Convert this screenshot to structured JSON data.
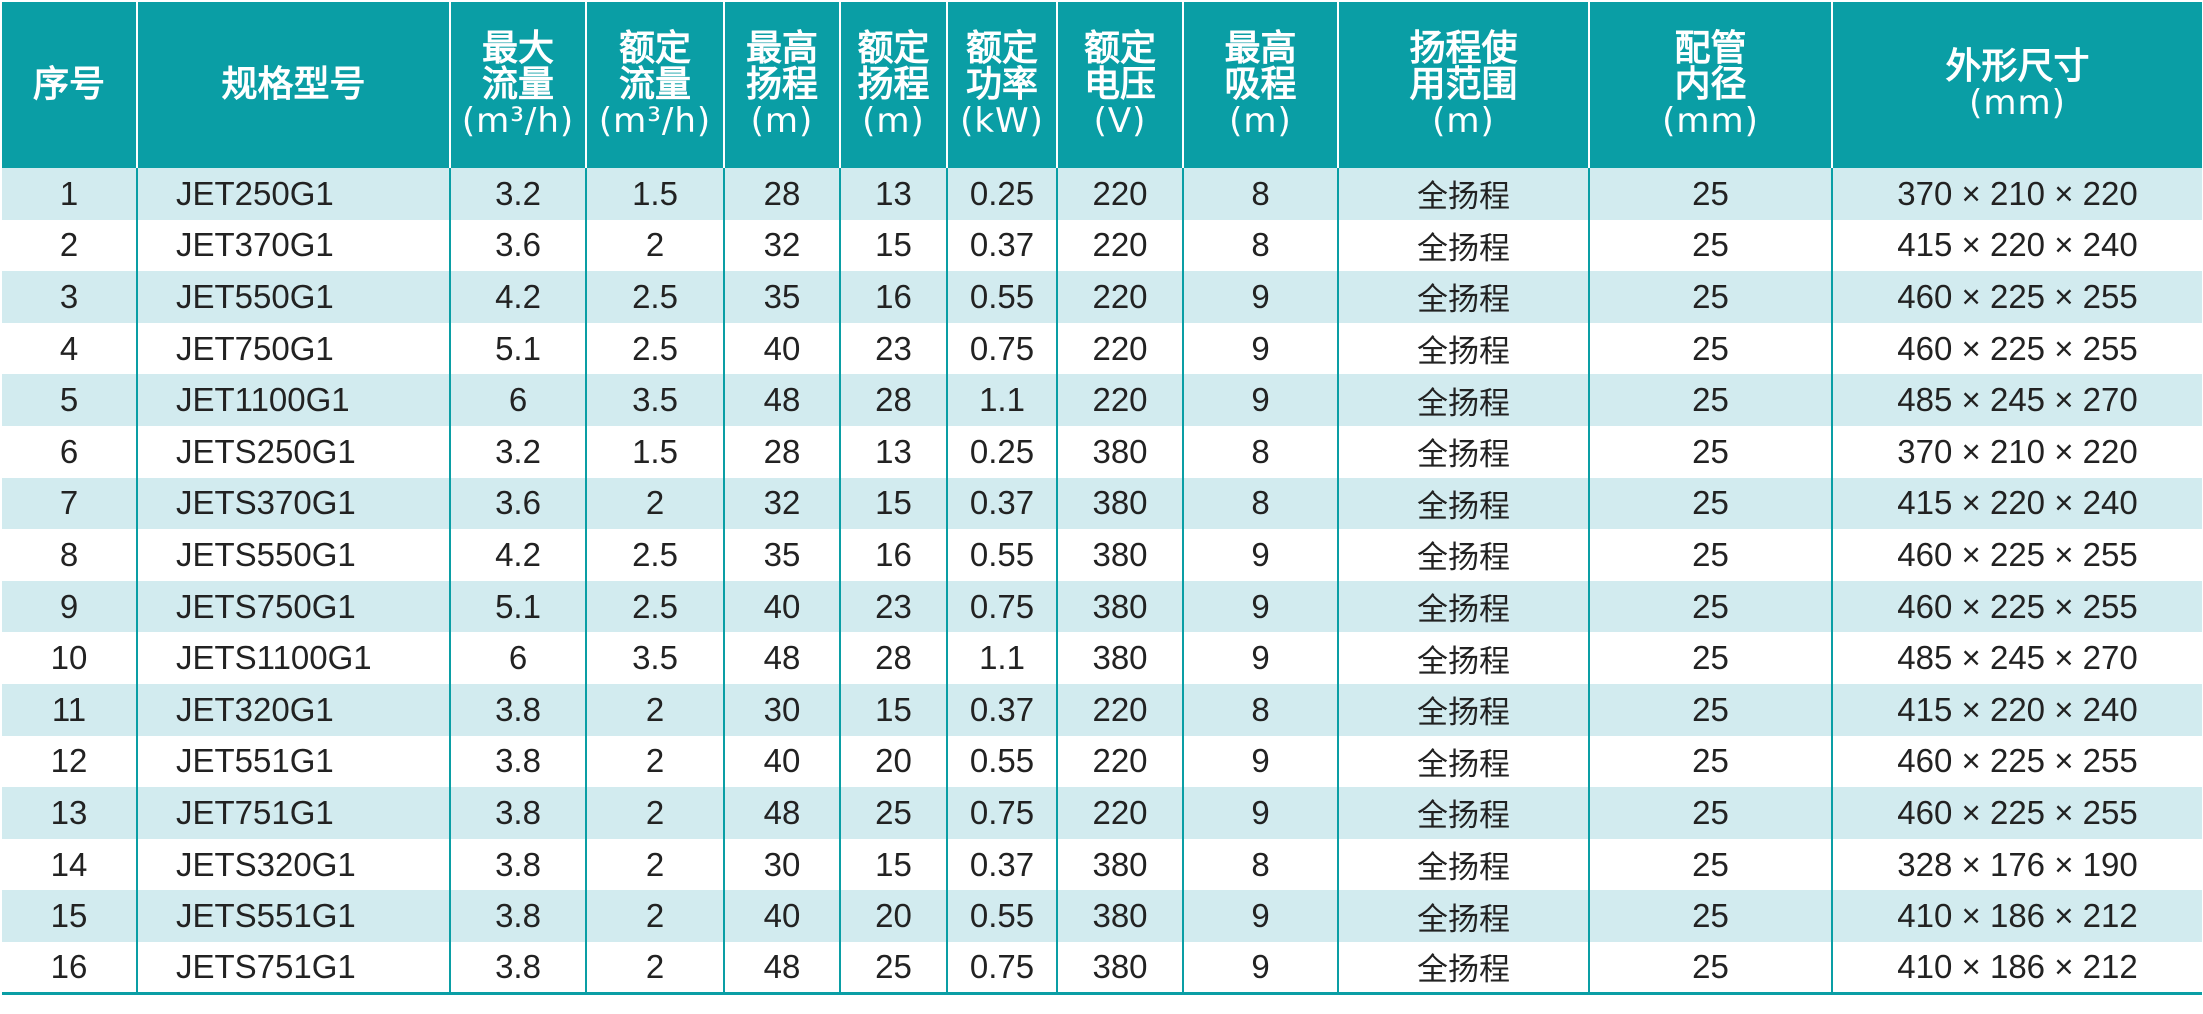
{
  "table": {
    "headers": [
      {
        "lines": [
          "序号"
        ],
        "unit": ""
      },
      {
        "lines": [
          "规格型号"
        ],
        "unit": ""
      },
      {
        "lines": [
          "最大",
          "流量"
        ],
        "unit": "(m³/h)"
      },
      {
        "lines": [
          "额定",
          "流量"
        ],
        "unit": "(m³/h)"
      },
      {
        "lines": [
          "最高",
          "扬程"
        ],
        "unit": "(m)"
      },
      {
        "lines": [
          "额定",
          "扬程"
        ],
        "unit": "(m)"
      },
      {
        "lines": [
          "额定",
          "功率"
        ],
        "unit": "(kW)"
      },
      {
        "lines": [
          "额定",
          "电压"
        ],
        "unit": "(V)"
      },
      {
        "lines": [
          "最高",
          "吸程"
        ],
        "unit": "(m)"
      },
      {
        "lines": [
          "扬程使",
          "用范围"
        ],
        "unit": "(m)"
      },
      {
        "lines": [
          "配管",
          "内径"
        ],
        "unit": "(mm)"
      },
      {
        "lines": [
          "外形尺寸"
        ],
        "unit": "(mm)"
      }
    ],
    "rows": [
      [
        "1",
        "JET250G1",
        "3.2",
        "1.5",
        "28",
        "13",
        "0.25",
        "220",
        "8",
        "全扬程",
        "25",
        "370 × 210 × 220"
      ],
      [
        "2",
        "JET370G1",
        "3.6",
        "2",
        "32",
        "15",
        "0.37",
        "220",
        "8",
        "全扬程",
        "25",
        "415 × 220 × 240"
      ],
      [
        "3",
        "JET550G1",
        "4.2",
        "2.5",
        "35",
        "16",
        "0.55",
        "220",
        "9",
        "全扬程",
        "25",
        "460 × 225 × 255"
      ],
      [
        "4",
        "JET750G1",
        "5.1",
        "2.5",
        "40",
        "23",
        "0.75",
        "220",
        "9",
        "全扬程",
        "25",
        "460 × 225 × 255"
      ],
      [
        "5",
        "JET1100G1",
        "6",
        "3.5",
        "48",
        "28",
        "1.1",
        "220",
        "9",
        "全扬程",
        "25",
        "485 × 245 × 270"
      ],
      [
        "6",
        "JETS250G1",
        "3.2",
        "1.5",
        "28",
        "13",
        "0.25",
        "380",
        "8",
        "全扬程",
        "25",
        "370 × 210 × 220"
      ],
      [
        "7",
        "JETS370G1",
        "3.6",
        "2",
        "32",
        "15",
        "0.37",
        "380",
        "8",
        "全扬程",
        "25",
        "415 × 220 × 240"
      ],
      [
        "8",
        "JETS550G1",
        "4.2",
        "2.5",
        "35",
        "16",
        "0.55",
        "380",
        "9",
        "全扬程",
        "25",
        "460 × 225 × 255"
      ],
      [
        "9",
        "JETS750G1",
        "5.1",
        "2.5",
        "40",
        "23",
        "0.75",
        "380",
        "9",
        "全扬程",
        "25",
        "460 × 225 × 255"
      ],
      [
        "10",
        "JETS1100G1",
        "6",
        "3.5",
        "48",
        "28",
        "1.1",
        "380",
        "9",
        "全扬程",
        "25",
        "485 × 245 × 270"
      ],
      [
        "11",
        "JET320G1",
        "3.8",
        "2",
        "30",
        "15",
        "0.37",
        "220",
        "8",
        "全扬程",
        "25",
        "415 × 220 × 240"
      ],
      [
        "12",
        "JET551G1",
        "3.8",
        "2",
        "40",
        "20",
        "0.55",
        "220",
        "9",
        "全扬程",
        "25",
        "460 × 225 × 255"
      ],
      [
        "13",
        "JET751G1",
        "3.8",
        "2",
        "48",
        "25",
        "0.75",
        "220",
        "9",
        "全扬程",
        "25",
        "460 × 225 × 255"
      ],
      [
        "14",
        "JETS320G1",
        "3.8",
        "2",
        "30",
        "15",
        "0.37",
        "380",
        "8",
        "全扬程",
        "25",
        "328 × 176 × 190"
      ],
      [
        "15",
        "JETS551G1",
        "3.8",
        "2",
        "40",
        "20",
        "0.55",
        "380",
        "9",
        "全扬程",
        "25",
        "410 × 186 × 212"
      ],
      [
        "16",
        "JETS751G1",
        "3.8",
        "2",
        "48",
        "25",
        "0.75",
        "380",
        "9",
        "全扬程",
        "25",
        "410 × 186 × 212"
      ]
    ]
  },
  "colors": {
    "header_bg": "#0a9ea5",
    "header_text": "#ffffff",
    "stripe": "#d2ebef",
    "body_text": "#222222"
  }
}
